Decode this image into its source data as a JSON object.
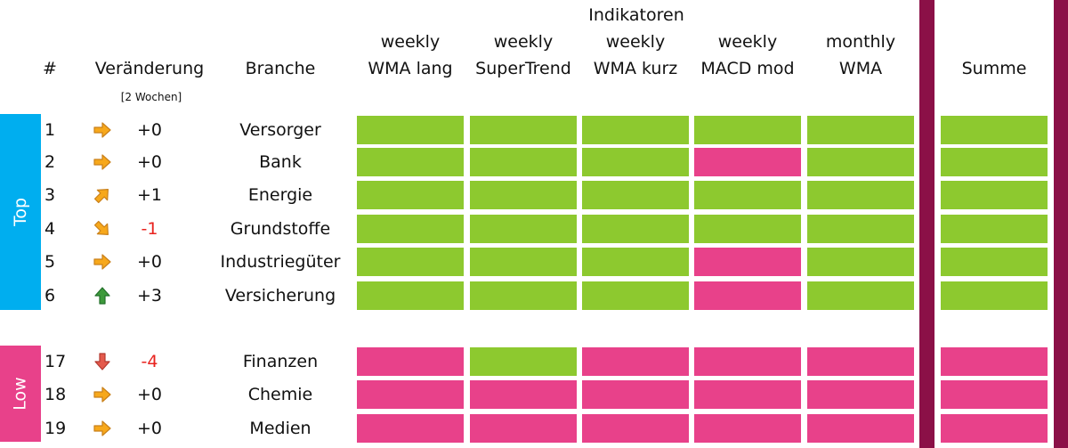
{
  "header": {
    "group_title": "Indikatoren",
    "col_rank": "#",
    "col_change": "Veränderung",
    "col_change_sub": "[2 Wochen]",
    "col_sector": "Branche",
    "indicators": [
      {
        "line1": "weekly",
        "line2": "WMA lang"
      },
      {
        "line1": "weekly",
        "line2": "SuperTrend"
      },
      {
        "line1": "weekly",
        "line2": "WMA kurz"
      },
      {
        "line1": "weekly",
        "line2": "MACD mod"
      },
      {
        "line1": "monthly",
        "line2": "WMA"
      }
    ],
    "col_sum": "Summe"
  },
  "groups": {
    "top_label": "Top",
    "low_label": "Low"
  },
  "colors": {
    "positive": "#8dc92f",
    "negative": "#e8418a",
    "group_top": "#00aeef",
    "group_low": "#e8418a",
    "divider": "#8b1047",
    "negative_text": "#e8221e"
  },
  "rows": [
    {
      "rank": "1",
      "arrow": "arrow-right-icon",
      "change": "+0",
      "sector": "Versorger",
      "signals": [
        1,
        1,
        1,
        1,
        1
      ],
      "sum": 1
    },
    {
      "rank": "2",
      "arrow": "arrow-right-icon",
      "change": "+0",
      "sector": "Bank",
      "signals": [
        1,
        1,
        1,
        0,
        1
      ],
      "sum": 1
    },
    {
      "rank": "3",
      "arrow": "arrow-up-right-icon",
      "change": "+1",
      "sector": "Energie",
      "signals": [
        1,
        1,
        1,
        1,
        1
      ],
      "sum": 1
    },
    {
      "rank": "4",
      "arrow": "arrow-down-right-icon",
      "change": "-1",
      "sector": "Grundstoffe",
      "signals": [
        1,
        1,
        1,
        1,
        1
      ],
      "sum": 1
    },
    {
      "rank": "5",
      "arrow": "arrow-right-icon",
      "change": "+0",
      "sector": "Industriegüter",
      "signals": [
        1,
        1,
        1,
        0,
        1
      ],
      "sum": 1
    },
    {
      "rank": "6",
      "arrow": "arrow-up-icon",
      "change": "+3",
      "sector": "Versicherung",
      "signals": [
        1,
        1,
        1,
        0,
        1
      ],
      "sum": 1
    },
    {
      "rank": "17",
      "arrow": "arrow-down-icon",
      "change": "-4",
      "sector": "Finanzen",
      "signals": [
        0,
        1,
        0,
        0,
        0
      ],
      "sum": 0
    },
    {
      "rank": "18",
      "arrow": "arrow-right-icon",
      "change": "+0",
      "sector": "Chemie",
      "signals": [
        0,
        0,
        0,
        0,
        0
      ],
      "sum": 0
    },
    {
      "rank": "19",
      "arrow": "arrow-right-icon",
      "change": "+0",
      "sector": "Medien",
      "signals": [
        0,
        0,
        0,
        0,
        0
      ],
      "sum": 0
    }
  ]
}
